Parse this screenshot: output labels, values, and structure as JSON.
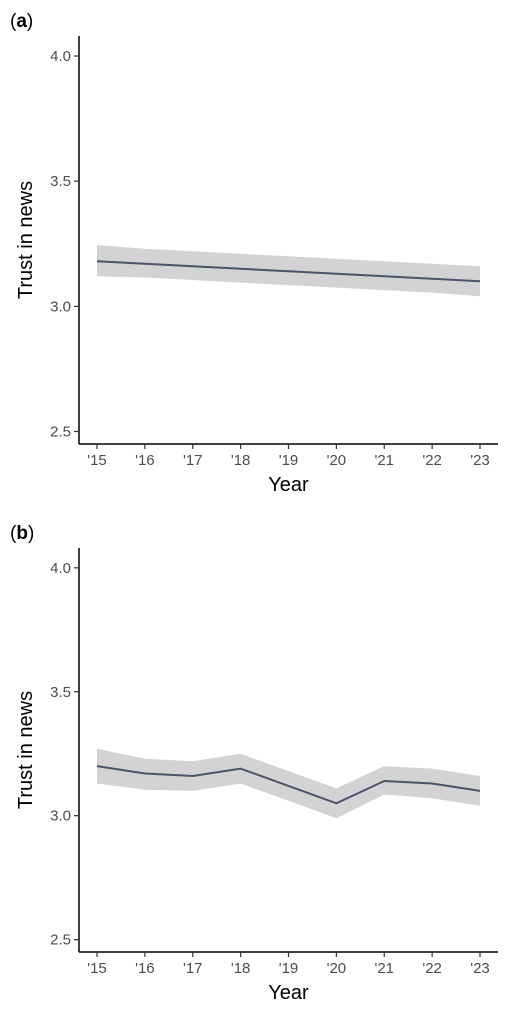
{
  "chart_data": [
    {
      "panel": "a",
      "type": "line",
      "title": "",
      "xlabel": "Year",
      "ylabel": "Trust in news",
      "categories": [
        "'15",
        "'16",
        "'17",
        "'18",
        "'19",
        "'20",
        "'21",
        "'22",
        "'23"
      ],
      "ylim": [
        2.45,
        4.08
      ],
      "yticks": [
        "2.5",
        "3.0",
        "3.5",
        "4.0"
      ],
      "grid": false,
      "series": [
        {
          "values": [
            3.18,
            3.17,
            3.16,
            3.15,
            3.14,
            3.13,
            3.12,
            3.11,
            3.1
          ],
          "lower": [
            3.12,
            3.115,
            3.105,
            3.095,
            3.085,
            3.075,
            3.065,
            3.055,
            3.04
          ],
          "upper": [
            3.245,
            3.23,
            3.22,
            3.21,
            3.2,
            3.19,
            3.18,
            3.17,
            3.16
          ]
        }
      ],
      "colors": {
        "line": "#4a5368",
        "band": "#d3d3d3"
      }
    },
    {
      "panel": "b",
      "type": "line",
      "title": "",
      "xlabel": "Year",
      "ylabel": "Trust in news",
      "categories": [
        "'15",
        "'16",
        "'17",
        "'18",
        "'19",
        "'20",
        "'21",
        "'22",
        "'23"
      ],
      "ylim": [
        2.45,
        4.08
      ],
      "yticks": [
        "2.5",
        "3.0",
        "3.5",
        "4.0"
      ],
      "grid": false,
      "series": [
        {
          "values": [
            3.2,
            3.17,
            3.16,
            3.19,
            3.12,
            3.05,
            3.14,
            3.13,
            3.1
          ],
          "lower": [
            3.13,
            3.105,
            3.1,
            3.13,
            3.06,
            2.99,
            3.085,
            3.07,
            3.04
          ],
          "upper": [
            3.27,
            3.23,
            3.22,
            3.25,
            3.18,
            3.11,
            3.2,
            3.19,
            3.16
          ]
        }
      ],
      "colors": {
        "line": "#4a5368",
        "band": "#d3d3d3"
      }
    }
  ]
}
